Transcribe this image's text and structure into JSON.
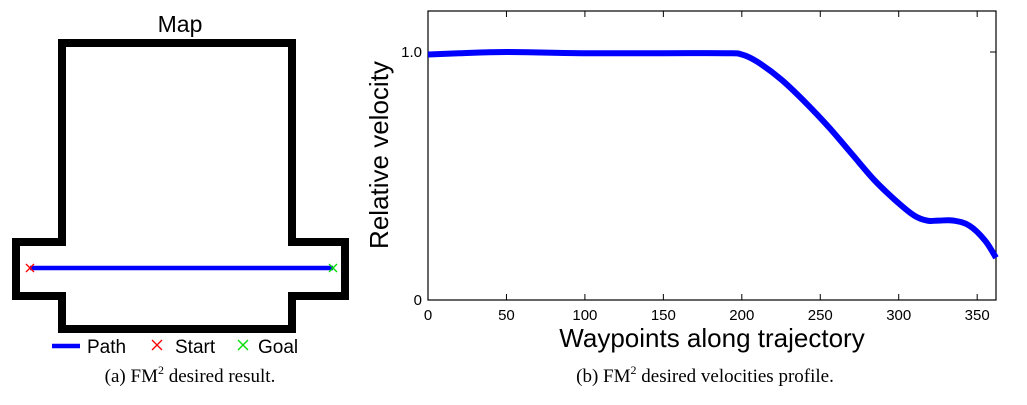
{
  "figure_a": {
    "title": "Map",
    "legend": {
      "path": "Path",
      "start": "Start",
      "goal": "Goal"
    },
    "caption": {
      "prefix": "(a) FM",
      "sup": "2",
      "suffix": " desired result."
    },
    "colors": {
      "wall": "#000000",
      "path": "#0000ff",
      "start": "#ff0000",
      "goal": "#00dd00"
    }
  },
  "figure_b": {
    "caption": {
      "prefix": "(b) FM",
      "sup": "2",
      "suffix": " desired velocities profile."
    }
  },
  "chart_data": {
    "type": "line",
    "title": "",
    "xlabel": "Waypoints along trajectory",
    "ylabel": "Relative velocity",
    "xlim": [
      0,
      362
    ],
    "ylim": [
      0,
      1.0
    ],
    "xticks": [
      "0",
      "50",
      "100",
      "150",
      "200",
      "250",
      "300",
      "350"
    ],
    "xtick_values": [
      0,
      50,
      100,
      150,
      200,
      250,
      300,
      350
    ],
    "yticks": [
      "0",
      "1.0"
    ],
    "ytick_values": [
      0,
      1.0
    ],
    "grid": false,
    "series": [
      {
        "name": "",
        "color": "#0000ff",
        "x": [
          0,
          20,
          50,
          100,
          150,
          190,
          200,
          210,
          225,
          240,
          255,
          270,
          285,
          300,
          310,
          318,
          325,
          335,
          345,
          355,
          362
        ],
        "y": [
          0.99,
          0.995,
          1.0,
          0.995,
          0.995,
          0.995,
          0.99,
          0.96,
          0.89,
          0.8,
          0.7,
          0.59,
          0.48,
          0.39,
          0.34,
          0.32,
          0.32,
          0.32,
          0.3,
          0.24,
          0.17
        ]
      }
    ]
  }
}
